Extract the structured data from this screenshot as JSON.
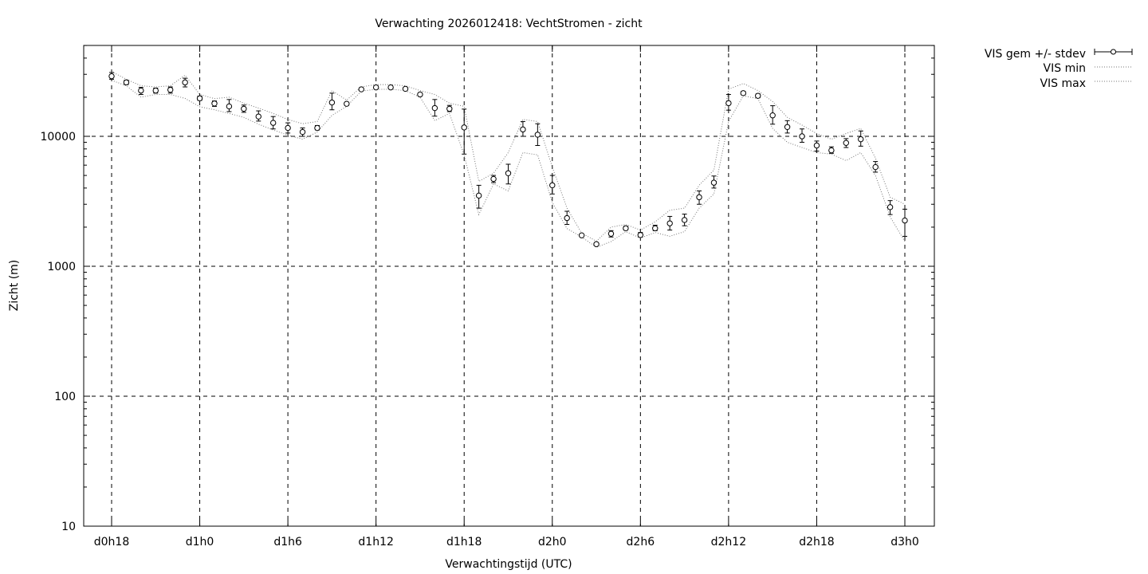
{
  "chart_data": {
    "type": "scatter",
    "title": "Verwachting 2026012418: VechtStromen - zicht",
    "xlabel": "Verwachtingstijd (UTC)",
    "ylabel": "Zicht (m)",
    "yscale": "log",
    "ylim": [
      10,
      50000
    ],
    "xlim": [
      -2,
      56
    ],
    "grid": true,
    "legend_position": "outside-top-right",
    "x_ticks": [
      {
        "x": 0,
        "label": "d0h18"
      },
      {
        "x": 6,
        "label": "d1h0"
      },
      {
        "x": 12,
        "label": "d1h6"
      },
      {
        "x": 18,
        "label": "d1h12"
      },
      {
        "x": 24,
        "label": "d1h18"
      },
      {
        "x": 30,
        "label": "d2h0"
      },
      {
        "x": 36,
        "label": "d2h6"
      },
      {
        "x": 42,
        "label": "d2h12"
      },
      {
        "x": 48,
        "label": "d2h18"
      },
      {
        "x": 54,
        "label": "d3h0"
      }
    ],
    "y_ticks": [
      {
        "y": 10,
        "label": "10"
      },
      {
        "y": 100,
        "label": "100"
      },
      {
        "y": 1000,
        "label": "1000"
      },
      {
        "y": 10000,
        "label": "10000"
      }
    ],
    "series": [
      {
        "name": "VIS gem +/- stdev",
        "style": "points-errorbars",
        "x": [
          0,
          1,
          2,
          3,
          4,
          5,
          6,
          7,
          8,
          9,
          10,
          11,
          12,
          13,
          14,
          15,
          16,
          17,
          18,
          19,
          20,
          21,
          22,
          23,
          24,
          25,
          26,
          27,
          28,
          29,
          30,
          31,
          32,
          33,
          34,
          35,
          36,
          37,
          38,
          39,
          40,
          41,
          42,
          43,
          44,
          45,
          46,
          47,
          48,
          49,
          50,
          51,
          52,
          53,
          54
        ],
        "mean": [
          29000,
          26000,
          22500,
          22500,
          22800,
          26000,
          19600,
          17900,
          17000,
          16300,
          14200,
          12700,
          11600,
          10800,
          11600,
          18200,
          17800,
          23000,
          23800,
          23800,
          23200,
          21000,
          16500,
          16300,
          11700,
          3500,
          4700,
          5200,
          11300,
          10300,
          4200,
          2350,
          1730,
          1480,
          1780,
          1960,
          1740,
          1960,
          2140,
          2270,
          3400,
          4400,
          18000,
          21500,
          20500,
          14500,
          11800,
          10000,
          8500,
          7800,
          8900,
          9500,
          5800,
          2850,
          2250
        ],
        "low": [
          27500,
          25000,
          21000,
          21500,
          21500,
          24000,
          18900,
          17000,
          15500,
          15300,
          13100,
          11400,
          10600,
          10000,
          11200,
          16000,
          17300,
          22500,
          23300,
          23300,
          22700,
          20500,
          14300,
          15500,
          7300,
          2800,
          4400,
          4300,
          10000,
          8500,
          3600,
          2100,
          1700,
          1450,
          1680,
          1900,
          1680,
          1880,
          1900,
          2050,
          3000,
          4000,
          15900,
          20900,
          19800,
          12400,
          10600,
          9000,
          7700,
          7400,
          8200,
          8400,
          5300,
          2500,
          1700
        ],
        "high": [
          31000,
          27000,
          23800,
          23500,
          24000,
          28000,
          20400,
          18700,
          19200,
          17400,
          15700,
          14200,
          12700,
          11600,
          12100,
          21500,
          18300,
          23500,
          24400,
          24300,
          23700,
          21500,
          19200,
          17300,
          16200,
          4200,
          5000,
          6100,
          13000,
          12500,
          5000,
          2650,
          1760,
          1510,
          1880,
          2030,
          1820,
          2070,
          2420,
          2520,
          3800,
          4950,
          21000,
          22200,
          21200,
          17200,
          13200,
          11400,
          9200,
          8300,
          9600,
          11000,
          6400,
          3200,
          2750
        ]
      },
      {
        "name": "VIS min",
        "style": "dotted-line",
        "x": [
          0,
          1,
          2,
          3,
          4,
          5,
          6,
          7,
          8,
          9,
          10,
          11,
          12,
          13,
          14,
          15,
          16,
          17,
          18,
          19,
          20,
          21,
          22,
          23,
          24,
          25,
          26,
          27,
          28,
          29,
          30,
          31,
          32,
          33,
          34,
          35,
          36,
          37,
          38,
          39,
          40,
          41,
          42,
          43,
          44,
          45,
          46,
          47,
          48,
          49,
          50,
          51,
          52,
          53,
          54
        ],
        "values": [
          27000,
          24500,
          20000,
          21000,
          21000,
          19600,
          16900,
          16000,
          15000,
          14000,
          12400,
          11200,
          10200,
          9500,
          10800,
          14500,
          17000,
          22300,
          23000,
          23000,
          22500,
          20000,
          13200,
          15000,
          7200,
          2500,
          4300,
          3800,
          7500,
          7200,
          3100,
          1950,
          1680,
          1400,
          1550,
          1850,
          1650,
          1820,
          1700,
          1850,
          2800,
          3600,
          13000,
          20500,
          19500,
          11500,
          9000,
          8200,
          7500,
          7300,
          6500,
          7500,
          5000,
          2400,
          1550
        ]
      },
      {
        "name": "VIS max",
        "style": "dotted-line",
        "x": [
          0,
          1,
          2,
          3,
          4,
          5,
          6,
          7,
          8,
          9,
          10,
          11,
          12,
          13,
          14,
          15,
          16,
          17,
          18,
          19,
          20,
          21,
          22,
          23,
          24,
          25,
          26,
          27,
          28,
          29,
          30,
          31,
          32,
          33,
          34,
          35,
          36,
          37,
          38,
          39,
          40,
          41,
          42,
          43,
          44,
          45,
          46,
          47,
          48,
          49,
          50,
          51,
          52,
          53,
          54
        ],
        "values": [
          31500,
          27500,
          24500,
          24000,
          24500,
          29500,
          21000,
          19500,
          20000,
          18000,
          16500,
          15000,
          13500,
          12500,
          13000,
          22500,
          19000,
          24000,
          25000,
          25000,
          24500,
          22500,
          21000,
          18000,
          17000,
          4500,
          5200,
          7500,
          13500,
          13000,
          5800,
          2800,
          1800,
          1560,
          2000,
          2100,
          1900,
          2200,
          2700,
          2800,
          4200,
          5500,
          23000,
          25500,
          22500,
          18500,
          14000,
          12200,
          10500,
          9500,
          10500,
          11500,
          6800,
          3400,
          3000
        ]
      }
    ]
  }
}
